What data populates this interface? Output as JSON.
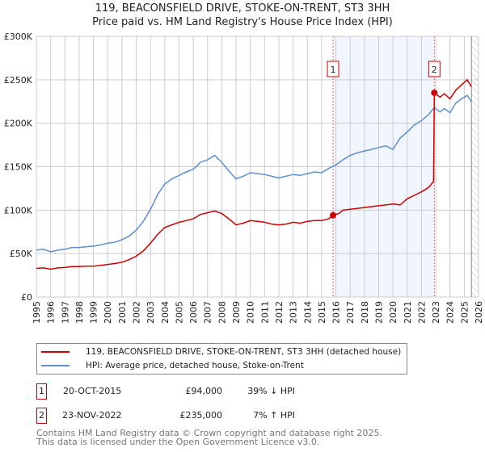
{
  "chart_data": {
    "type": "line",
    "title": "119, BEACONSFIELD DRIVE, STOKE-ON-TRENT, ST3 3HH",
    "subtitle": "Price paid vs. HM Land Registry's House Price Index (HPI)",
    "xlim": [
      1995,
      2026
    ],
    "ylim": [
      0,
      300000
    ],
    "x_ticks": [
      "1995",
      "1996",
      "1997",
      "1998",
      "1999",
      "2000",
      "2001",
      "2002",
      "2003",
      "2004",
      "2005",
      "2006",
      "2007",
      "2008",
      "2009",
      "2010",
      "2011",
      "2012",
      "2013",
      "2014",
      "2015",
      "2016",
      "2017",
      "2018",
      "2019",
      "2020",
      "2021",
      "2022",
      "2023",
      "2024",
      "2025",
      "2026"
    ],
    "y_ticks": [
      {
        "v": 0,
        "l": "£0"
      },
      {
        "v": 50000,
        "l": "£50K"
      },
      {
        "v": 100000,
        "l": "£100K"
      },
      {
        "v": 150000,
        "l": "£150K"
      },
      {
        "v": 200000,
        "l": "£200K"
      },
      {
        "v": 250000,
        "l": "£250K"
      },
      {
        "v": 300000,
        "l": "£300K"
      }
    ],
    "grid": true,
    "series": [
      {
        "name": "119, BEACONSFIELD DRIVE, STOKE-ON-TRENT, ST3 3HH (detached house)",
        "color": "#cc0000",
        "x": [
          1995,
          1995.5,
          1996,
          1996.5,
          1997,
          1997.5,
          1998,
          1998.5,
          1999,
          1999.5,
          2000,
          2000.5,
          2001,
          2001.5,
          2002,
          2002.5,
          2003,
          2003.5,
          2004,
          2004.5,
          2005,
          2005.5,
          2006,
          2006.5,
          2007,
          2007.5,
          2008,
          2008.5,
          2009,
          2009.5,
          2010,
          2010.5,
          2011,
          2011.5,
          2012,
          2012.5,
          2013,
          2013.5,
          2014,
          2014.5,
          2015,
          2015.5,
          2015.8,
          2016.2,
          2016.5,
          2017,
          2017.5,
          2018,
          2018.5,
          2019,
          2019.5,
          2020,
          2020.5,
          2021,
          2021.5,
          2022,
          2022.5,
          2022.85,
          2022.9,
          2023.3,
          2023.6,
          2024,
          2024.4,
          2024.8,
          2025.2,
          2025.5
        ],
        "y": [
          33000,
          33500,
          32000,
          33500,
          34000,
          35000,
          35000,
          35500,
          35500,
          36500,
          37500,
          38500,
          40000,
          43000,
          47000,
          53000,
          62000,
          72000,
          80000,
          83000,
          86000,
          88000,
          90000,
          95000,
          97000,
          99000,
          96000,
          90000,
          83000,
          85000,
          88000,
          87000,
          86000,
          84000,
          83000,
          84000,
          86000,
          85000,
          87000,
          88000,
          88000,
          90000,
          94000,
          96000,
          100000,
          101000,
          102000,
          103000,
          104000,
          105000,
          106000,
          107000,
          106000,
          113000,
          117000,
          121000,
          126000,
          133000,
          235000,
          230000,
          234000,
          228000,
          238000,
          244000,
          250000,
          242000
        ]
      },
      {
        "name": "HPI: Average price, detached house, Stoke-on-Trent",
        "color": "#5b8fd0",
        "x": [
          1995,
          1995.5,
          1996,
          1996.5,
          1997,
          1997.5,
          1998,
          1998.5,
          1999,
          1999.5,
          2000,
          2000.5,
          2001,
          2001.5,
          2002,
          2002.5,
          2003,
          2003.5,
          2004,
          2004.5,
          2005,
          2005.5,
          2006,
          2006.5,
          2007,
          2007.5,
          2008,
          2008.5,
          2009,
          2009.5,
          2010,
          2010.5,
          2011,
          2011.5,
          2012,
          2012.5,
          2013,
          2013.5,
          2014,
          2014.5,
          2015,
          2015.5,
          2016,
          2016.5,
          2017,
          2017.5,
          2018,
          2018.5,
          2019,
          2019.5,
          2020,
          2020.5,
          2021,
          2021.5,
          2022,
          2022.5,
          2022.9,
          2023.3,
          2023.6,
          2024,
          2024.4,
          2024.8,
          2025.2,
          2025.5
        ],
        "y": [
          54000,
          55000,
          52000,
          54000,
          55000,
          57000,
          57000,
          58000,
          58500,
          60000,
          62000,
          63000,
          66000,
          70000,
          77000,
          87000,
          101000,
          118000,
          130000,
          136000,
          140000,
          144000,
          147000,
          155000,
          158000,
          163000,
          155000,
          145000,
          136000,
          139000,
          143000,
          142000,
          141000,
          139000,
          137000,
          139000,
          141000,
          140000,
          142000,
          144000,
          143000,
          148000,
          152000,
          158000,
          163000,
          166000,
          168000,
          170000,
          172000,
          174000,
          170000,
          183000,
          190000,
          198000,
          203000,
          210000,
          218000,
          213000,
          217000,
          212000,
          223000,
          228000,
          232000,
          225000
        ]
      }
    ],
    "annotations": [
      {
        "label": "1",
        "x": 2015.8,
        "price": 94000,
        "date": "20-OCT-2015",
        "price_label": "£94,000",
        "hpi": "39% ↓ HPI"
      },
      {
        "label": "2",
        "x": 2022.9,
        "price": 235000,
        "date": "23-NOV-2022",
        "price_label": "£235,000",
        "hpi": "7% ↑ HPI"
      }
    ],
    "shaded_range": [
      2015.8,
      2022.9
    ],
    "hatched_from": 2025.5
  },
  "legend": {
    "red": "119, BEACONSFIELD DRIVE, STOKE-ON-TRENT, ST3 3HH (detached house)",
    "blue": "HPI: Average price, detached house, Stoke-on-Trent"
  },
  "footer": {
    "line1": "Contains HM Land Registry data © Crown copyright and database right 2025.",
    "line2": "This data is licensed under the Open Government Licence v3.0."
  }
}
